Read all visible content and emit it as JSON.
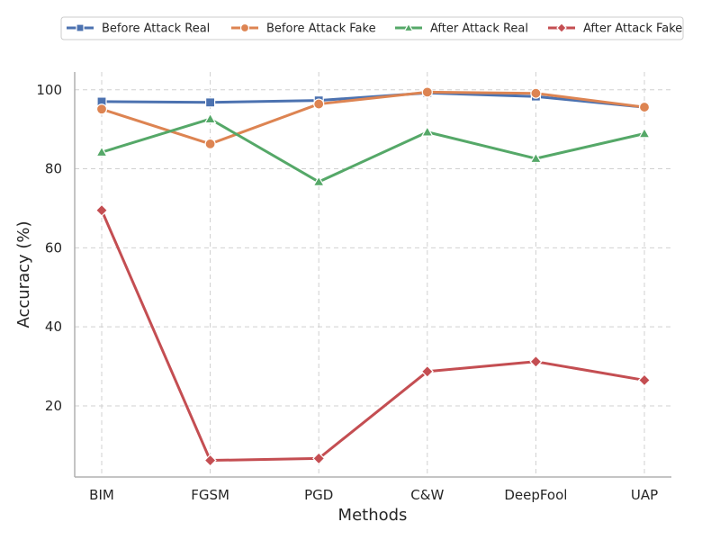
{
  "chart_data": {
    "type": "line",
    "title": "",
    "xlabel": "Methods",
    "ylabel": "Accuracy (%)",
    "categories": [
      "BIM",
      "FGSM",
      "PGD",
      "C&W",
      "DeepFool",
      "UAP"
    ],
    "ylim": [
      2,
      104.5
    ],
    "yticks": [
      20,
      40,
      60,
      80,
      100
    ],
    "grid": true,
    "legend_position": "top",
    "series": [
      {
        "name": "Before Attack Real",
        "color": "#4c72b0",
        "marker": "square",
        "values": [
          97.0,
          96.8,
          97.3,
          99.2,
          98.3,
          95.6
        ]
      },
      {
        "name": "Before Attack Fake",
        "color": "#dd8452",
        "marker": "circle",
        "values": [
          95.1,
          86.3,
          96.4,
          99.4,
          99.1,
          95.6
        ]
      },
      {
        "name": "After Attack Real",
        "color": "#55a868",
        "marker": "triangle",
        "values": [
          84.2,
          92.6,
          76.7,
          89.3,
          82.6,
          88.9
        ]
      },
      {
        "name": "After Attack Fake",
        "color": "#c44e52",
        "marker": "diamond",
        "values": [
          69.5,
          6.2,
          6.7,
          28.7,
          31.2,
          26.5
        ]
      }
    ]
  }
}
